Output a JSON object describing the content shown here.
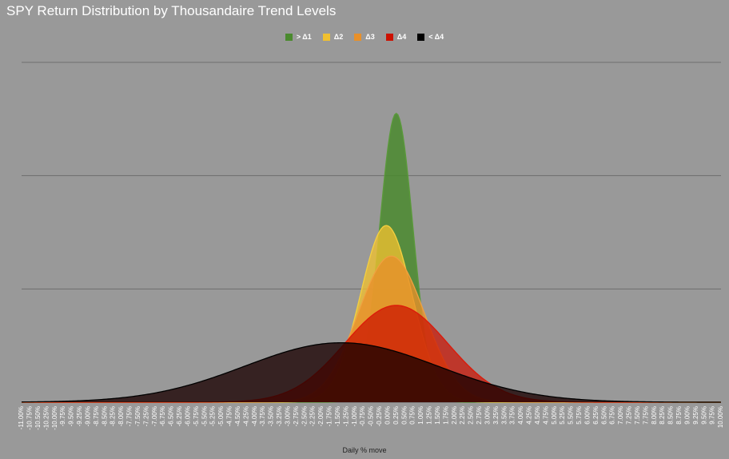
{
  "chart_data": {
    "type": "area",
    "title": "SPY Return Distribution by Thousandaire Trend Levels",
    "xlabel": "Daily % move",
    "ylabel": "",
    "xlim": [
      -11,
      10
    ],
    "x_tick_step": 0.25,
    "grid": true,
    "legend_position": "top",
    "series": [
      {
        "name": "> Δ1",
        "color": "#4a8a2e",
        "stroke": "#5a9a3a",
        "opacity": 0.85,
        "mean": 0.25,
        "sd": 0.5,
        "peak": 0.85
      },
      {
        "name": "Δ2",
        "color": "#f0c030",
        "stroke": "#f5d040",
        "opacity": 0.78,
        "mean": -0.05,
        "sd": 0.78,
        "peak": 0.52
      },
      {
        "name": "Δ3",
        "color": "#e8902a",
        "stroke": "#f0a040",
        "opacity": 0.78,
        "mean": 0.1,
        "sd": 1.0,
        "peak": 0.43
      },
      {
        "name": "Δ4",
        "color": "#cc1100",
        "stroke": "#dd1a0a",
        "opacity": 0.72,
        "mean": 0.25,
        "sd": 1.55,
        "peak": 0.285
      },
      {
        "name": "< Δ4",
        "color": "#1a0000",
        "stroke": "#000000",
        "opacity": 0.78,
        "mean": -1.4,
        "sd": 2.9,
        "peak": 0.175
      }
    ]
  }
}
